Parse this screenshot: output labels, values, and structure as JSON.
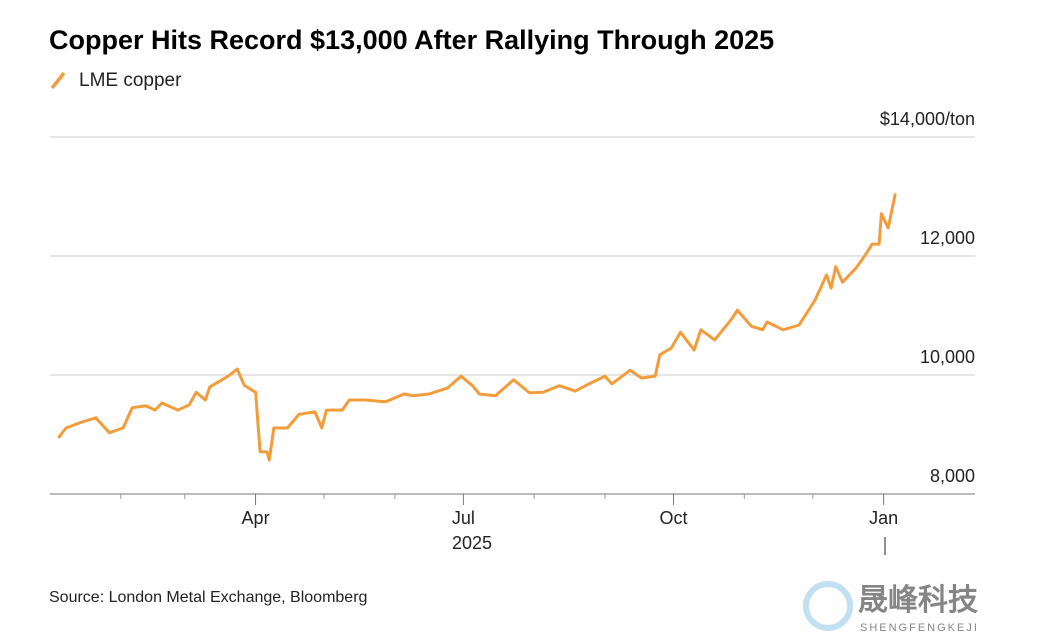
{
  "chart_data": {
    "type": "line",
    "title": "Copper Hits Record $13,000 After Rallying Through 2025",
    "source": "Source: London Metal Exchange, Bloomberg",
    "watermark": {
      "name": "晟峰科技",
      "subtitle": "SHENGFENGKEJI"
    },
    "x_year_label": "2025",
    "x": [
      4,
      7,
      14,
      20,
      26,
      32,
      36,
      42,
      46,
      49,
      56,
      61,
      64,
      68,
      70,
      78,
      82,
      85,
      90,
      92,
      95,
      96,
      98,
      104,
      109,
      116,
      119,
      121,
      128,
      131,
      138,
      147,
      155,
      159,
      166,
      174,
      180,
      185,
      188,
      195,
      203,
      210,
      216,
      223,
      230,
      236,
      243,
      246,
      254,
      259,
      265,
      267,
      272,
      276,
      282,
      285,
      291,
      298,
      301,
      307,
      312,
      314,
      321,
      328,
      335,
      340,
      342,
      344,
      347,
      353,
      357,
      360,
      363,
      364,
      367,
      370
    ],
    "series": [
      {
        "name": "LME copper",
        "color": "#f39c3c",
        "values": [
          8960,
          9110,
          9210,
          9280,
          9030,
          9110,
          9450,
          9480,
          9410,
          9530,
          9410,
          9500,
          9710,
          9580,
          9800,
          9980,
          10100,
          9830,
          9710,
          8710,
          8710,
          8570,
          9110,
          9110,
          9340,
          9380,
          9110,
          9410,
          9410,
          9580,
          9580,
          9550,
          9680,
          9650,
          9680,
          9780,
          9980,
          9820,
          9680,
          9650,
          9920,
          9700,
          9710,
          9820,
          9730,
          9850,
          9980,
          9850,
          10080,
          9950,
          9980,
          10340,
          10450,
          10720,
          10420,
          10760,
          10590,
          10920,
          11090,
          10820,
          10760,
          10890,
          10760,
          10840,
          11260,
          11680,
          11460,
          11820,
          11560,
          11800,
          12020,
          12200,
          12200,
          12710,
          12470,
          13030
        ]
      }
    ],
    "xlim": [
      0,
      405
    ],
    "xticks": [
      {
        "value": 90,
        "label": "Apr"
      },
      {
        "value": 181,
        "label": "Jul"
      },
      {
        "value": 273,
        "label": "Oct"
      },
      {
        "value": 365,
        "label": "Jan"
      }
    ],
    "xminor_ticks": [
      31,
      59,
      120,
      151,
      212,
      243,
      304,
      334
    ],
    "ylim": [
      8000,
      14000
    ],
    "yticks": [
      {
        "value": 8000,
        "label": "8,000"
      },
      {
        "value": 10000,
        "label": "10,000"
      },
      {
        "value": 12000,
        "label": "12,000"
      },
      {
        "value": 14000,
        "label": "$14,000/ton"
      }
    ],
    "grid": true
  }
}
